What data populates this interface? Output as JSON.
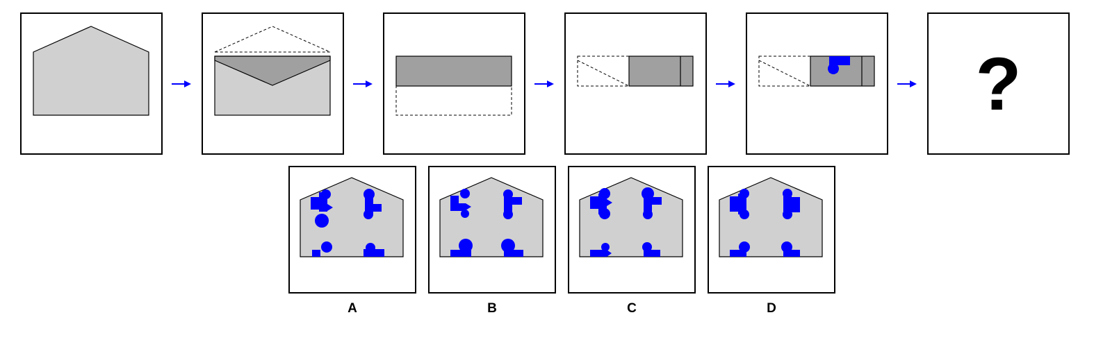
{
  "colors": {
    "background": "#ffffff",
    "border": "#000000",
    "paper_light": "#d0d0d0",
    "paper_dark": "#a0a0a0",
    "arrow": "#0000ff",
    "hole": "#0000ff"
  },
  "sequence": {
    "question_mark": "?"
  },
  "options": [
    {
      "label": "A"
    },
    {
      "label": "B"
    },
    {
      "label": "C"
    },
    {
      "label": "D"
    }
  ]
}
